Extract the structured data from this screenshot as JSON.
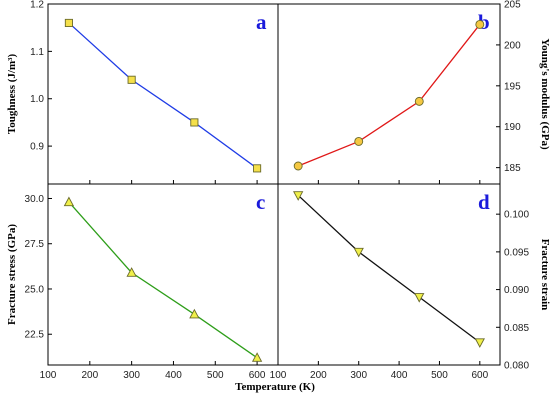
{
  "figure": {
    "xlabel": "Temperature (K)",
    "panel_letter_color": "#1a1adb",
    "axis_color": "#000000"
  },
  "chart_data": [
    {
      "type": "line",
      "panel": "a",
      "x": [
        150,
        300,
        450,
        600
      ],
      "series": [
        {
          "values": [
            1.16,
            1.04,
            0.95,
            0.853
          ],
          "color": "#1f3ce6",
          "marker": "square",
          "marker_fill": "#f5e04a"
        }
      ],
      "xlabel": "",
      "ylabel": "Toughness (J/m³)",
      "yaxis_side": "left",
      "xlim": [
        100,
        650
      ],
      "ylim": [
        0.82,
        1.2
      ],
      "xticks": [
        "100",
        "200",
        "300",
        "400",
        "500",
        "600"
      ],
      "yticks": [
        0.9,
        1.0,
        1.1,
        1.2
      ],
      "yticklabels": [
        "0.9",
        "1.0",
        "1.1",
        "1.2"
      ],
      "show_x_ticklabels": false
    },
    {
      "type": "line",
      "panel": "b",
      "x": [
        150,
        300,
        450,
        600
      ],
      "series": [
        {
          "values": [
            185.2,
            188.2,
            193.1,
            202.5
          ],
          "color": "#e01818",
          "marker": "circle",
          "marker_fill": "#f5c842"
        }
      ],
      "xlabel": "",
      "ylabel": "Young's modulus (GPa)",
      "yaxis_side": "right",
      "xlim": [
        100,
        650
      ],
      "ylim": [
        183,
        205
      ],
      "xticks": [
        "100",
        "200",
        "300",
        "400",
        "500",
        "600"
      ],
      "yticks": [
        185,
        190,
        195,
        200,
        205
      ],
      "yticklabels": [
        "185",
        "190",
        "195",
        "200",
        "205"
      ],
      "show_x_ticklabels": false
    },
    {
      "type": "line",
      "panel": "c",
      "x": [
        150,
        300,
        450,
        600
      ],
      "series": [
        {
          "values": [
            29.8,
            25.9,
            23.6,
            21.2
          ],
          "color": "#2e9e1a",
          "marker": "triangle-up",
          "marker_fill": "#f0f04a"
        }
      ],
      "xlabel": "Temperature (K)",
      "ylabel": "Fracture stress (GPa)",
      "yaxis_side": "left",
      "xlim": [
        100,
        650
      ],
      "ylim": [
        20.8,
        30.8
      ],
      "xticks": [
        "100",
        "200",
        "300",
        "400",
        "500",
        "600"
      ],
      "yticks": [
        22.5,
        25.0,
        27.5,
        30.0
      ],
      "yticklabels": [
        "22.5",
        "25.0",
        "27.5",
        "30.0"
      ],
      "show_x_ticklabels": true
    },
    {
      "type": "line",
      "panel": "d",
      "x": [
        150,
        300,
        450,
        600
      ],
      "series": [
        {
          "values": [
            0.1025,
            0.095,
            0.089,
            0.083
          ],
          "color": "#111111",
          "marker": "triangle-down",
          "marker_fill": "#f0f04a"
        }
      ],
      "xlabel": "Temperature (K)",
      "ylabel": "Fracture strain",
      "yaxis_side": "right",
      "xlim": [
        100,
        650
      ],
      "ylim": [
        0.08,
        0.104
      ],
      "xticks": [
        "100",
        "200",
        "300",
        "400",
        "500",
        "600"
      ],
      "yticks": [
        0.08,
        0.085,
        0.09,
        0.095,
        0.1
      ],
      "yticklabels": [
        "0.080",
        "0.085",
        "0.090",
        "0.095",
        "0.100"
      ],
      "show_x_ticklabels": true
    }
  ]
}
